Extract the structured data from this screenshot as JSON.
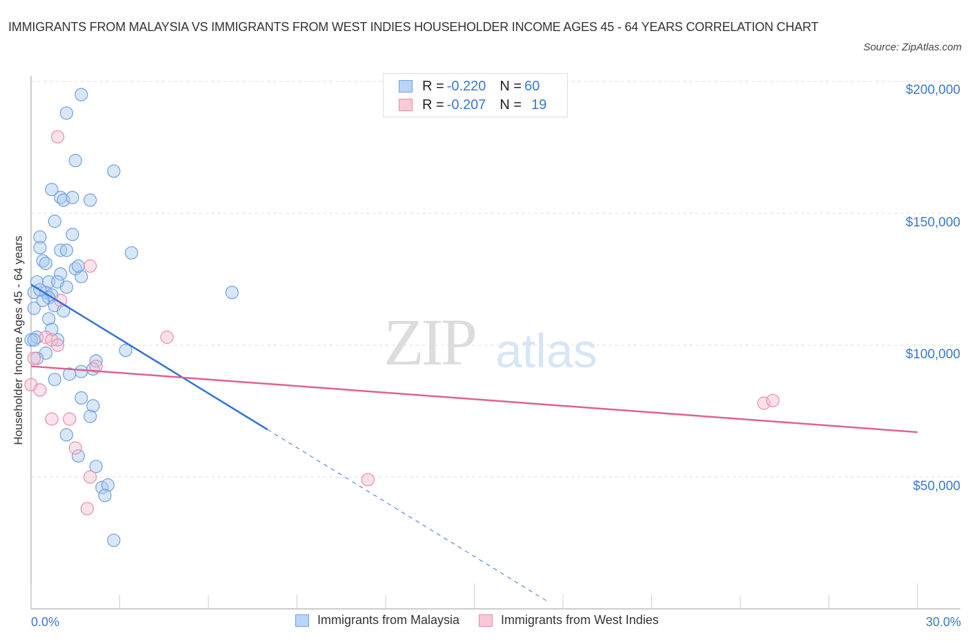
{
  "title": "IMMIGRANTS FROM MALAYSIA VS IMMIGRANTS FROM WEST INDIES HOUSEHOLDER INCOME AGES 45 - 64 YEARS CORRELATION CHART",
  "source": "Source: ZipAtlas.com",
  "watermark": {
    "zip": "ZIP",
    "atlas": "atlas"
  },
  "legend": {
    "rows": [
      {
        "r_label": "R = ",
        "r_value": "-0.220",
        "n_label": "N = ",
        "n_value": "60",
        "color": "#a9c9f0",
        "border": "#6d9fe0"
      },
      {
        "r_label": "R = ",
        "r_value": "-0.207",
        "n_label": "N = ",
        "n_value": "19",
        "color": "#f7bfd0",
        "border": "#e88aa8"
      }
    ]
  },
  "axes": {
    "y_ticks": [
      "$200,000",
      "$150,000",
      "$100,000",
      "$50,000"
    ],
    "x_min_label": "0.0%",
    "x_max_label": "30.0%",
    "y_label": "Householder Income Ages 45 - 64 years"
  },
  "bottom_legend": [
    {
      "label": "Immigrants from Malaysia",
      "color": "#a9c9f0",
      "border": "#6d9fe0"
    },
    {
      "label": "Immigrants from West Indies",
      "color": "#f7bfd0",
      "border": "#e88aa8"
    }
  ],
  "chart_data": {
    "type": "scatter",
    "title": "Immigrants from Malaysia vs Immigrants from West Indies Householder Income Ages 45 - 64 Years Correlation Chart",
    "xlabel": "",
    "ylabel": "Householder Income Ages 45 - 64 years",
    "xlim": [
      0,
      30
    ],
    "ylim": [
      0,
      200000
    ],
    "x_unit": "%",
    "grid": true,
    "legend_position": "bottom",
    "series": [
      {
        "name": "Immigrants from Malaysia",
        "color": "#6d9fe0",
        "R": -0.22,
        "N": 60,
        "trend": {
          "x0": 0,
          "y0": 123000,
          "x1": 8.0,
          "y1": 68000,
          "dashed_to_x": 17.5
        },
        "points": [
          [
            1.7,
            195000
          ],
          [
            1.2,
            188000
          ],
          [
            1.5,
            170000
          ],
          [
            2.8,
            166000
          ],
          [
            0.7,
            159000
          ],
          [
            1.0,
            156000
          ],
          [
            1.1,
            155000
          ],
          [
            1.4,
            156000
          ],
          [
            2.0,
            155000
          ],
          [
            0.8,
            147000
          ],
          [
            1.4,
            142000
          ],
          [
            0.3,
            141000
          ],
          [
            0.3,
            137000
          ],
          [
            1.0,
            136000
          ],
          [
            1.2,
            136000
          ],
          [
            3.4,
            135000
          ],
          [
            0.4,
            132000
          ],
          [
            0.5,
            131000
          ],
          [
            1.5,
            129000
          ],
          [
            1.0,
            127000
          ],
          [
            1.7,
            126000
          ],
          [
            0.2,
            124000
          ],
          [
            0.6,
            124000
          ],
          [
            0.9,
            124000
          ],
          [
            1.2,
            122000
          ],
          [
            0.5,
            120000
          ],
          [
            0.1,
            120000
          ],
          [
            0.7,
            119000
          ],
          [
            6.8,
            120000
          ],
          [
            0.6,
            118000
          ],
          [
            0.4,
            117000
          ],
          [
            0.8,
            115000
          ],
          [
            0.1,
            114000
          ],
          [
            0.6,
            110000
          ],
          [
            1.1,
            113000
          ],
          [
            0.7,
            106000
          ],
          [
            0.2,
            103000
          ],
          [
            0.0,
            102000
          ],
          [
            0.9,
            102000
          ],
          [
            3.2,
            98000
          ],
          [
            0.5,
            97000
          ],
          [
            0.2,
            95000
          ],
          [
            2.2,
            94000
          ],
          [
            1.7,
            90000
          ],
          [
            2.1,
            91000
          ],
          [
            0.8,
            87000
          ],
          [
            1.3,
            89000
          ],
          [
            1.7,
            80000
          ],
          [
            2.1,
            77000
          ],
          [
            2.0,
            73000
          ],
          [
            1.2,
            66000
          ],
          [
            1.6,
            58000
          ],
          [
            2.2,
            54000
          ],
          [
            2.4,
            46000
          ],
          [
            2.6,
            47000
          ],
          [
            2.5,
            43000
          ],
          [
            2.8,
            26000
          ],
          [
            0.1,
            102000
          ],
          [
            0.3,
            121000
          ],
          [
            1.6,
            130000
          ]
        ]
      },
      {
        "name": "Immigrants from West Indies",
        "color": "#e88aa8",
        "R": -0.207,
        "N": 19,
        "trend": {
          "x0": 0,
          "y0": 92000,
          "x1": 30,
          "y1": 67000
        },
        "points": [
          [
            0.9,
            179000
          ],
          [
            2.0,
            130000
          ],
          [
            1.0,
            117000
          ],
          [
            4.6,
            103000
          ],
          [
            0.5,
            103000
          ],
          [
            0.7,
            102000
          ],
          [
            0.9,
            100000
          ],
          [
            2.2,
            92000
          ],
          [
            0.1,
            95000
          ],
          [
            0.0,
            85000
          ],
          [
            0.3,
            83000
          ],
          [
            0.7,
            72000
          ],
          [
            1.3,
            72000
          ],
          [
            1.5,
            61000
          ],
          [
            2.0,
            50000
          ],
          [
            11.4,
            49000
          ],
          [
            1.9,
            38000
          ],
          [
            24.8,
            78000
          ],
          [
            25.1,
            79000
          ]
        ]
      }
    ]
  }
}
